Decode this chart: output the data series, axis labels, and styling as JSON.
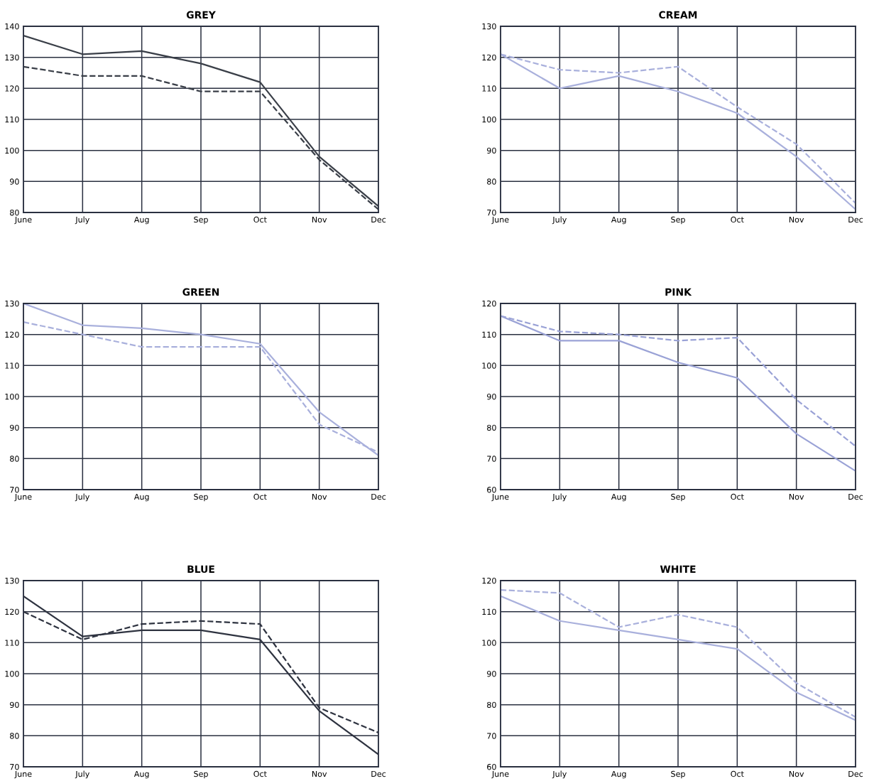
{
  "chart_data": [
    {
      "type": "line",
      "title": "GREY",
      "categories": [
        "June",
        "July",
        "Aug",
        "Sep",
        "Oct",
        "Nov",
        "Dec"
      ],
      "ylim": [
        80,
        140
      ],
      "yticks": [
        80,
        90,
        100,
        110,
        120,
        130,
        140
      ],
      "grid": true,
      "series": [
        {
          "color": "#3a3f48",
          "line_style": "solid",
          "values": [
            137,
            131,
            132,
            128,
            122,
            98,
            82
          ]
        },
        {
          "color": "#3a3f48",
          "line_style": "dashed",
          "values": [
            127,
            124,
            124,
            119,
            119,
            97,
            81
          ]
        }
      ]
    },
    {
      "type": "line",
      "title": "CREAM",
      "categories": [
        "June",
        "July",
        "Aug",
        "Sep",
        "Oct",
        "Nov",
        "Dec"
      ],
      "ylim": [
        70,
        130
      ],
      "yticks": [
        70,
        80,
        90,
        100,
        110,
        120,
        130
      ],
      "grid": true,
      "series": [
        {
          "color": "#a9b0dc",
          "line_style": "solid",
          "values": [
            121,
            110,
            114,
            109,
            102,
            88,
            71
          ]
        },
        {
          "color": "#a9b0dc",
          "line_style": "dashed",
          "values": [
            121,
            116,
            115,
            117,
            104,
            92,
            73
          ]
        }
      ]
    },
    {
      "type": "line",
      "title": "GREEN",
      "categories": [
        "June",
        "July",
        "Aug",
        "Sep",
        "Oct",
        "Nov",
        "Dec"
      ],
      "ylim": [
        70,
        130
      ],
      "yticks": [
        70,
        80,
        90,
        100,
        110,
        120,
        130
      ],
      "grid": true,
      "series": [
        {
          "color": "#a9b0dc",
          "line_style": "solid",
          "values": [
            130,
            123,
            122,
            120,
            117,
            95,
            81
          ]
        },
        {
          "color": "#a9b0dc",
          "line_style": "dashed",
          "values": [
            124,
            120,
            116,
            116,
            116,
            91,
            82
          ]
        }
      ]
    },
    {
      "type": "line",
      "title": "PINK",
      "categories": [
        "June",
        "July",
        "Aug",
        "Sep",
        "Oct",
        "Nov",
        "Dec"
      ],
      "ylim": [
        60,
        120
      ],
      "yticks": [
        60,
        70,
        80,
        90,
        100,
        110,
        120
      ],
      "grid": true,
      "series": [
        {
          "color": "#9aa2d6",
          "line_style": "solid",
          "values": [
            116,
            108,
            108,
            101,
            96,
            78,
            66
          ]
        },
        {
          "color": "#9aa2d6",
          "line_style": "dashed",
          "values": [
            116,
            111,
            110,
            108,
            109,
            89,
            74
          ]
        }
      ]
    },
    {
      "type": "line",
      "title": "BLUE",
      "categories": [
        "June",
        "July",
        "Aug",
        "Sep",
        "Oct",
        "Nov",
        "Dec"
      ],
      "ylim": [
        70,
        130
      ],
      "yticks": [
        70,
        80,
        90,
        100,
        110,
        120,
        130
      ],
      "grid": true,
      "series": [
        {
          "color": "#2e3340",
          "line_style": "solid",
          "values": [
            125,
            112,
            114,
            114,
            111,
            88,
            74
          ]
        },
        {
          "color": "#2e3340",
          "line_style": "dashed",
          "values": [
            120,
            111,
            116,
            117,
            116,
            89,
            81
          ]
        }
      ]
    },
    {
      "type": "line",
      "title": "WHITE",
      "categories": [
        "June",
        "July",
        "Aug",
        "Sep",
        "Oct",
        "Nov",
        "Dec"
      ],
      "ylim": [
        60,
        120
      ],
      "yticks": [
        60,
        70,
        80,
        90,
        100,
        110,
        120
      ],
      "grid": true,
      "series": [
        {
          "color": "#a9b0dc",
          "line_style": "dashed",
          "values": [
            117,
            116,
            105,
            109,
            105,
            87,
            76
          ]
        },
        {
          "color": "#a9b0dc",
          "line_style": "solid",
          "values": [
            115,
            107,
            104,
            101,
            98,
            84,
            75
          ]
        }
      ]
    }
  ]
}
